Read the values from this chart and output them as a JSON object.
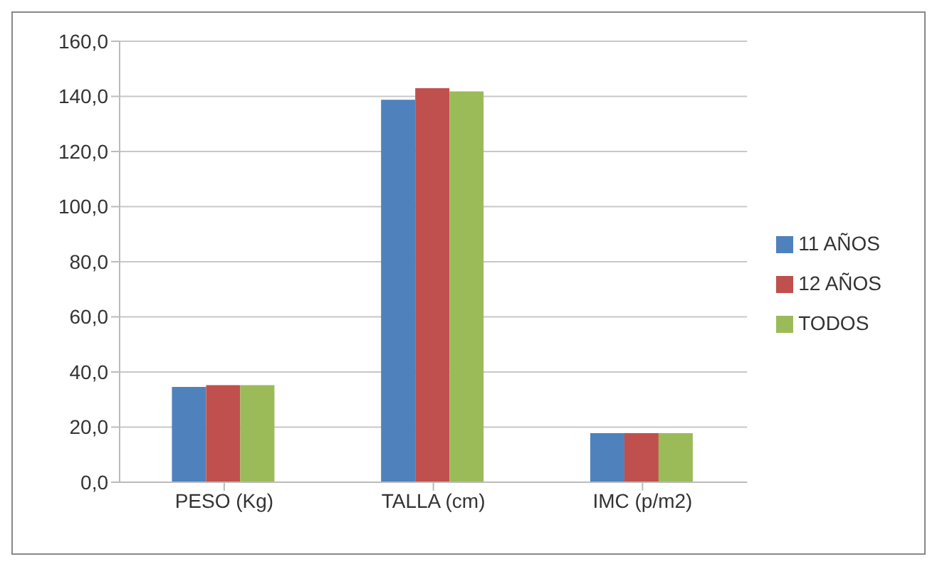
{
  "chart_data": {
    "type": "bar",
    "categories": [
      "PESO (Kg)",
      "TALLA (cm)",
      "IMC (p/m2)"
    ],
    "series": [
      {
        "name": "11 AÑOS",
        "color": "#4f81bd",
        "values": [
          34.6,
          138.8,
          17.8
        ]
      },
      {
        "name": "12 AÑOS",
        "color": "#c0504d",
        "values": [
          35.2,
          143.0,
          17.8
        ]
      },
      {
        "name": "TODOS",
        "color": "#9bbb59",
        "values": [
          35.2,
          141.8,
          17.8
        ]
      }
    ],
    "ylim": [
      0,
      160
    ],
    "yticks": [
      {
        "value": 0,
        "label": "0,0"
      },
      {
        "value": 20,
        "label": "20,0"
      },
      {
        "value": 40,
        "label": "40,0"
      },
      {
        "value": 60,
        "label": "60,0"
      },
      {
        "value": 80,
        "label": "80,0"
      },
      {
        "value": 100,
        "label": "100,0"
      },
      {
        "value": 120,
        "label": "120,0"
      },
      {
        "value": 140,
        "label": "140,0"
      },
      {
        "value": 160,
        "label": "160,0"
      }
    ],
    "grid": "y",
    "legend": "right"
  }
}
